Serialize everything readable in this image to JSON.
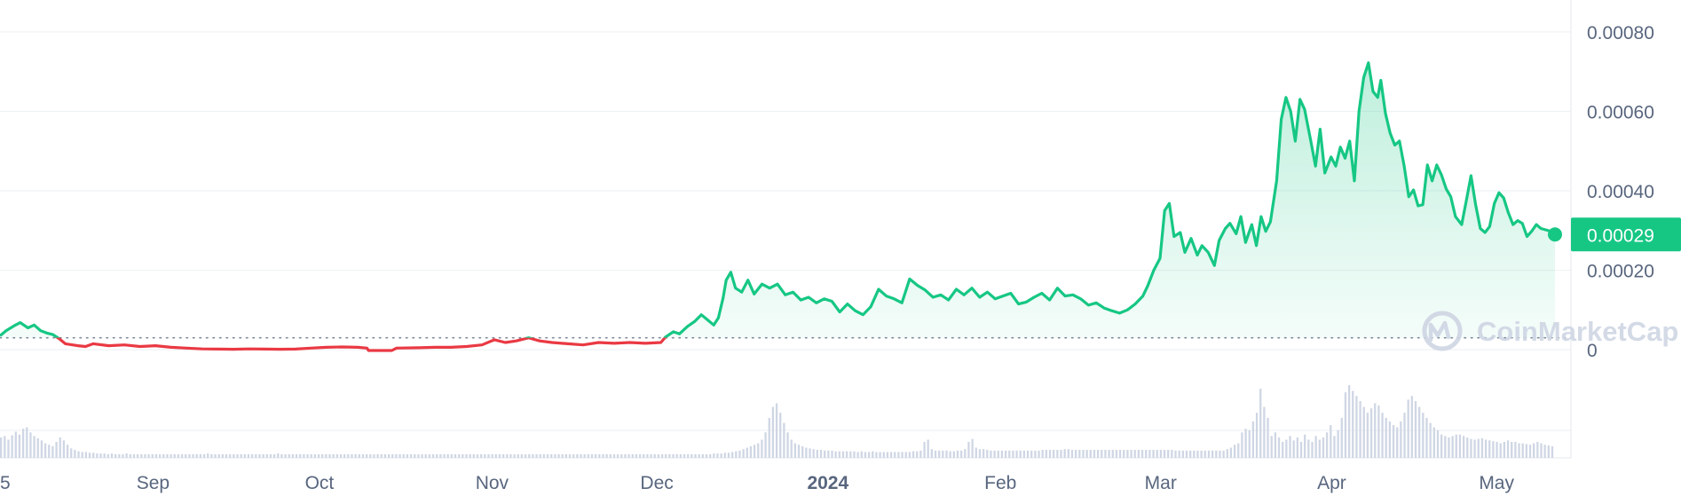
{
  "chart_data": {
    "type": "area",
    "y_axis_position": "right",
    "ylim": [
      -4e-05,
      0.00084
    ],
    "y_ticks": [
      {
        "value": 0,
        "label": "0"
      },
      {
        "value": 0.0002,
        "label": "0.00020"
      },
      {
        "value": 0.0004,
        "label": "0.00040"
      },
      {
        "value": 0.0006,
        "label": "0.00060"
      },
      {
        "value": 0.0008,
        "label": "0.00080"
      }
    ],
    "x_ticks": [
      {
        "pos": 0.0,
        "label": "5",
        "bold": false
      },
      {
        "pos": 0.095,
        "label": "Sep",
        "bold": false
      },
      {
        "pos": 0.202,
        "label": "Oct",
        "bold": false
      },
      {
        "pos": 0.313,
        "label": "Nov",
        "bold": false
      },
      {
        "pos": 0.419,
        "label": "Dec",
        "bold": false
      },
      {
        "pos": 0.529,
        "label": "2024",
        "bold": true
      },
      {
        "pos": 0.64,
        "label": "Feb",
        "bold": false
      },
      {
        "pos": 0.743,
        "label": "Mar",
        "bold": false
      },
      {
        "pos": 0.853,
        "label": "Apr",
        "bold": false
      },
      {
        "pos": 0.959,
        "label": "May",
        "bold": false
      }
    ],
    "reference_price": 3e-05,
    "current_price": {
      "value": 0.00029,
      "label": "0.00029"
    },
    "colors": {
      "up": "#16c784",
      "down": "#ea3943",
      "badge": "#16c784",
      "grid": "#eff2f5",
      "volume": "#cfd6e4"
    },
    "grid": true,
    "watermark": "CoinMarketCap",
    "series": [
      {
        "values": [
          [
            0.0,
            3.5e-05
          ],
          [
            0.004,
            4.8e-05
          ],
          [
            0.009,
            6e-05
          ],
          [
            0.013,
            6.8e-05
          ],
          [
            0.018,
            5.5e-05
          ],
          [
            0.022,
            6.2e-05
          ],
          [
            0.026,
            4.8e-05
          ],
          [
            0.03,
            4.2e-05
          ],
          [
            0.034,
            3.8e-05
          ],
          [
            0.038,
            2.8e-05
          ],
          [
            0.042,
            1.5e-05
          ],
          [
            0.05,
            1e-05
          ],
          [
            0.055,
            8e-06
          ],
          [
            0.06,
            1.5e-05
          ],
          [
            0.07,
            1e-05
          ],
          [
            0.08,
            1.2e-05
          ],
          [
            0.09,
            8e-06
          ],
          [
            0.1,
            1e-05
          ],
          [
            0.11,
            6e-06
          ],
          [
            0.12,
            4e-06
          ],
          [
            0.13,
            2e-06
          ],
          [
            0.14,
            1.5e-06
          ],
          [
            0.15,
            1e-06
          ],
          [
            0.16,
            2e-06
          ],
          [
            0.17,
            1.5e-06
          ],
          [
            0.18,
            1e-06
          ],
          [
            0.19,
            1.5e-06
          ],
          [
            0.2,
            4e-06
          ],
          [
            0.21,
            6e-06
          ],
          [
            0.22,
            7e-06
          ],
          [
            0.23,
            6e-06
          ],
          [
            0.236,
            4e-06
          ],
          [
            0.237,
            -2e-06
          ],
          [
            0.252,
            -2e-06
          ],
          [
            0.255,
            4e-06
          ],
          [
            0.27,
            5e-06
          ],
          [
            0.28,
            6e-06
          ],
          [
            0.29,
            6e-06
          ],
          [
            0.3,
            8e-06
          ],
          [
            0.31,
            1.2e-05
          ],
          [
            0.318,
            2.5e-05
          ],
          [
            0.325,
            1.8e-05
          ],
          [
            0.332,
            2.2e-05
          ],
          [
            0.34,
            3e-05
          ],
          [
            0.347,
            2.2e-05
          ],
          [
            0.355,
            1.8e-05
          ],
          [
            0.365,
            1.5e-05
          ],
          [
            0.375,
            1.2e-05
          ],
          [
            0.385,
            1.8e-05
          ],
          [
            0.395,
            1.6e-05
          ],
          [
            0.405,
            1.8e-05
          ],
          [
            0.415,
            1.6e-05
          ],
          [
            0.425,
            1.8e-05
          ],
          [
            0.428,
            3.2e-05
          ],
          [
            0.433,
            4.5e-05
          ],
          [
            0.437,
            4e-05
          ],
          [
            0.442,
            5.8e-05
          ],
          [
            0.447,
            7.2e-05
          ],
          [
            0.451,
            8.8e-05
          ],
          [
            0.455,
            7.5e-05
          ],
          [
            0.459,
            6.2e-05
          ],
          [
            0.462,
            8e-05
          ],
          [
            0.465,
            0.00013
          ],
          [
            0.467,
            0.000175
          ],
          [
            0.47,
            0.000195
          ],
          [
            0.473,
            0.000155
          ],
          [
            0.477,
            0.000145
          ],
          [
            0.481,
            0.000175
          ],
          [
            0.485,
            0.00014
          ],
          [
            0.49,
            0.000165
          ],
          [
            0.495,
            0.000155
          ],
          [
            0.5,
            0.000165
          ],
          [
            0.505,
            0.000138
          ],
          [
            0.51,
            0.000145
          ],
          [
            0.515,
            0.000125
          ],
          [
            0.52,
            0.000132
          ],
          [
            0.525,
            0.000118
          ],
          [
            0.53,
            0.000128
          ],
          [
            0.535,
            0.000122
          ],
          [
            0.54,
            9.5e-05
          ],
          [
            0.545,
            0.000115
          ],
          [
            0.55,
            9.8e-05
          ],
          [
            0.555,
            8.8e-05
          ],
          [
            0.56,
            0.000108
          ],
          [
            0.565,
            0.000152
          ],
          [
            0.57,
            0.000135
          ],
          [
            0.575,
            0.000128
          ],
          [
            0.58,
            0.000118
          ],
          [
            0.585,
            0.000178
          ],
          [
            0.59,
            0.000162
          ],
          [
            0.595,
            0.00015
          ],
          [
            0.6,
            0.000132
          ],
          [
            0.605,
            0.000138
          ],
          [
            0.61,
            0.000125
          ],
          [
            0.615,
            0.000152
          ],
          [
            0.62,
            0.000138
          ],
          [
            0.625,
            0.000155
          ],
          [
            0.63,
            0.000132
          ],
          [
            0.635,
            0.000145
          ],
          [
            0.64,
            0.000128
          ],
          [
            0.645,
            0.000135
          ],
          [
            0.65,
            0.000142
          ],
          [
            0.655,
            0.000115
          ],
          [
            0.66,
            0.00012
          ],
          [
            0.665,
            0.000132
          ],
          [
            0.67,
            0.000142
          ],
          [
            0.675,
            0.000125
          ],
          [
            0.68,
            0.000155
          ],
          [
            0.685,
            0.000135
          ],
          [
            0.69,
            0.000138
          ],
          [
            0.695,
            0.000128
          ],
          [
            0.7,
            0.000112
          ],
          [
            0.705,
            0.000118
          ],
          [
            0.71,
            0.000105
          ],
          [
            0.715,
            9.8e-05
          ],
          [
            0.72,
            9.2e-05
          ],
          [
            0.725,
            0.0001
          ],
          [
            0.73,
            0.000115
          ],
          [
            0.735,
            0.000135
          ],
          [
            0.738,
            0.00016
          ],
          [
            0.742,
            0.0002
          ],
          [
            0.746,
            0.00023
          ],
          [
            0.749,
            0.00035
          ],
          [
            0.752,
            0.000368
          ],
          [
            0.755,
            0.000285
          ],
          [
            0.759,
            0.000295
          ],
          [
            0.762,
            0.000245
          ],
          [
            0.766,
            0.00028
          ],
          [
            0.77,
            0.000238
          ],
          [
            0.773,
            0.000262
          ],
          [
            0.777,
            0.000245
          ],
          [
            0.781,
            0.000212
          ],
          [
            0.784,
            0.000275
          ],
          [
            0.788,
            0.000305
          ],
          [
            0.791,
            0.000318
          ],
          [
            0.795,
            0.000292
          ],
          [
            0.798,
            0.000335
          ],
          [
            0.801,
            0.00027
          ],
          [
            0.805,
            0.000315
          ],
          [
            0.808,
            0.000262
          ],
          [
            0.811,
            0.000335
          ],
          [
            0.814,
            0.000298
          ],
          [
            0.817,
            0.000322
          ],
          [
            0.821,
            0.000425
          ],
          [
            0.824,
            0.00058
          ],
          [
            0.827,
            0.000635
          ],
          [
            0.83,
            0.0006
          ],
          [
            0.833,
            0.000525
          ],
          [
            0.836,
            0.00063
          ],
          [
            0.839,
            0.000605
          ],
          [
            0.843,
            0.000525
          ],
          [
            0.846,
            0.000462
          ],
          [
            0.849,
            0.000555
          ],
          [
            0.852,
            0.000445
          ],
          [
            0.856,
            0.000485
          ],
          [
            0.859,
            0.000462
          ],
          [
            0.862,
            0.00051
          ],
          [
            0.865,
            0.000482
          ],
          [
            0.868,
            0.000525
          ],
          [
            0.871,
            0.000425
          ],
          [
            0.874,
            0.0006
          ],
          [
            0.877,
            0.000685
          ],
          [
            0.88,
            0.000722
          ],
          [
            0.883,
            0.00065
          ],
          [
            0.886,
            0.000635
          ],
          [
            0.888,
            0.000678
          ],
          [
            0.891,
            0.000595
          ],
          [
            0.894,
            0.000545
          ],
          [
            0.897,
            0.000515
          ],
          [
            0.9,
            0.000525
          ],
          [
            0.903,
            0.000462
          ],
          [
            0.906,
            0.000385
          ],
          [
            0.909,
            0.000402
          ],
          [
            0.912,
            0.000362
          ],
          [
            0.915,
            0.000365
          ],
          [
            0.918,
            0.000465
          ],
          [
            0.921,
            0.000425
          ],
          [
            0.924,
            0.000465
          ],
          [
            0.927,
            0.00044
          ],
          [
            0.93,
            0.000405
          ],
          [
            0.933,
            0.000385
          ],
          [
            0.936,
            0.000335
          ],
          [
            0.94,
            0.000315
          ],
          [
            0.943,
            0.000375
          ],
          [
            0.946,
            0.000438
          ],
          [
            0.949,
            0.000365
          ],
          [
            0.952,
            0.000305
          ],
          [
            0.955,
            0.000295
          ],
          [
            0.958,
            0.00031
          ],
          [
            0.961,
            0.000368
          ],
          [
            0.964,
            0.000395
          ],
          [
            0.967,
            0.000382
          ],
          [
            0.97,
            0.000345
          ],
          [
            0.973,
            0.000315
          ],
          [
            0.976,
            0.000325
          ],
          [
            0.979,
            0.000318
          ],
          [
            0.982,
            0.000285
          ],
          [
            0.985,
            0.000298
          ],
          [
            0.988,
            0.000315
          ],
          [
            0.991,
            0.000305
          ],
          [
            1.0,
            0.000295
          ]
        ]
      }
    ],
    "volume": [
      0.28,
      0.3,
      0.25,
      0.31,
      0.36,
      0.32,
      0.4,
      0.42,
      0.35,
      0.3,
      0.27,
      0.24,
      0.2,
      0.18,
      0.16,
      0.22,
      0.28,
      0.24,
      0.18,
      0.13,
      0.11,
      0.09,
      0.08,
      0.08,
      0.07,
      0.07,
      0.06,
      0.06,
      0.06,
      0.05,
      0.06,
      0.05,
      0.05,
      0.05,
      0.06,
      0.05,
      0.05,
      0.05,
      0.05,
      0.05,
      0.05,
      0.05,
      0.05,
      0.05,
      0.05,
      0.05,
      0.05,
      0.05,
      0.05,
      0.05,
      0.05,
      0.05,
      0.05,
      0.05,
      0.05,
      0.05,
      0.06,
      0.05,
      0.05,
      0.05,
      0.05,
      0.05,
      0.05,
      0.05,
      0.05,
      0.05,
      0.05,
      0.05,
      0.05,
      0.05,
      0.05,
      0.05,
      0.05,
      0.05,
      0.05,
      0.06,
      0.05,
      0.05,
      0.05,
      0.05,
      0.05,
      0.05,
      0.05,
      0.05,
      0.05,
      0.05,
      0.05,
      0.05,
      0.05,
      0.05,
      0.05,
      0.05,
      0.05,
      0.05,
      0.05,
      0.05,
      0.05,
      0.05,
      0.05,
      0.05,
      0.05,
      0.05,
      0.05,
      0.05,
      0.05,
      0.05,
      0.05,
      0.05,
      0.05,
      0.05,
      0.05,
      0.05,
      0.05,
      0.05,
      0.05,
      0.05,
      0.05,
      0.05,
      0.05,
      0.05,
      0.05,
      0.05,
      0.05,
      0.05,
      0.05,
      0.05,
      0.05,
      0.05,
      0.05,
      0.05,
      0.05,
      0.05,
      0.05,
      0.05,
      0.05,
      0.05,
      0.05,
      0.05,
      0.05,
      0.05,
      0.05,
      0.05,
      0.05,
      0.05,
      0.05,
      0.05,
      0.05,
      0.05,
      0.05,
      0.05,
      0.05,
      0.05,
      0.05,
      0.05,
      0.05,
      0.05,
      0.05,
      0.05,
      0.05,
      0.05,
      0.05,
      0.05,
      0.05,
      0.05,
      0.05,
      0.05,
      0.05,
      0.05,
      0.05,
      0.05,
      0.05,
      0.05,
      0.05,
      0.05,
      0.05,
      0.05,
      0.05,
      0.05,
      0.05,
      0.05,
      0.05,
      0.05,
      0.05,
      0.05,
      0.05,
      0.05,
      0.05,
      0.05,
      0.05,
      0.05,
      0.05,
      0.05,
      0.05,
      0.06,
      0.06,
      0.06,
      0.07,
      0.07,
      0.08,
      0.09,
      0.1,
      0.12,
      0.14,
      0.16,
      0.18,
      0.2,
      0.25,
      0.35,
      0.55,
      0.7,
      0.75,
      0.62,
      0.48,
      0.35,
      0.25,
      0.2,
      0.18,
      0.16,
      0.14,
      0.13,
      0.12,
      0.11,
      0.11,
      0.1,
      0.1,
      0.1,
      0.09,
      0.09,
      0.09,
      0.09,
      0.09,
      0.09,
      0.08,
      0.09,
      0.08,
      0.08,
      0.09,
      0.08,
      0.08,
      0.08,
      0.08,
      0.08,
      0.08,
      0.08,
      0.08,
      0.08,
      0.08,
      0.09,
      0.09,
      0.1,
      0.22,
      0.25,
      0.12,
      0.1,
      0.1,
      0.1,
      0.1,
      0.09,
      0.09,
      0.1,
      0.1,
      0.12,
      0.22,
      0.26,
      0.14,
      0.12,
      0.12,
      0.11,
      0.1,
      0.1,
      0.1,
      0.1,
      0.1,
      0.1,
      0.1,
      0.1,
      0.1,
      0.1,
      0.1,
      0.1,
      0.1,
      0.1,
      0.11,
      0.11,
      0.11,
      0.11,
      0.11,
      0.11,
      0.12,
      0.12,
      0.11,
      0.11,
      0.11,
      0.11,
      0.11,
      0.11,
      0.11,
      0.11,
      0.11,
      0.11,
      0.11,
      0.11,
      0.11,
      0.11,
      0.11,
      0.11,
      0.11,
      0.11,
      0.11,
      0.11,
      0.11,
      0.11,
      0.11,
      0.11,
      0.11,
      0.11,
      0.11,
      0.11,
      0.1,
      0.1,
      0.1,
      0.1,
      0.1,
      0.1,
      0.1,
      0.1,
      0.1,
      0.1,
      0.1,
      0.1,
      0.1,
      0.1,
      0.12,
      0.14,
      0.18,
      0.2,
      0.35,
      0.4,
      0.38,
      0.5,
      0.62,
      0.95,
      0.7,
      0.55,
      0.3,
      0.35,
      0.28,
      0.22,
      0.25,
      0.3,
      0.24,
      0.28,
      0.22,
      0.32,
      0.25,
      0.22,
      0.3,
      0.25,
      0.28,
      0.35,
      0.45,
      0.3,
      0.38,
      0.55,
      0.9,
      1.0,
      0.92,
      0.85,
      0.78,
      0.7,
      0.62,
      0.68,
      0.75,
      0.72,
      0.62,
      0.55,
      0.5,
      0.45,
      0.42,
      0.5,
      0.62,
      0.8,
      0.85,
      0.78,
      0.7,
      0.62,
      0.55,
      0.48,
      0.42,
      0.38,
      0.32,
      0.3,
      0.28,
      0.3,
      0.32,
      0.32,
      0.3,
      0.28,
      0.26,
      0.25,
      0.26,
      0.27,
      0.25,
      0.24,
      0.23,
      0.22,
      0.2,
      0.22,
      0.24,
      0.22,
      0.22,
      0.2,
      0.2,
      0.19,
      0.18,
      0.2,
      0.22,
      0.2,
      0.18,
      0.17,
      0.16
    ],
    "volume_max": 1.0
  }
}
